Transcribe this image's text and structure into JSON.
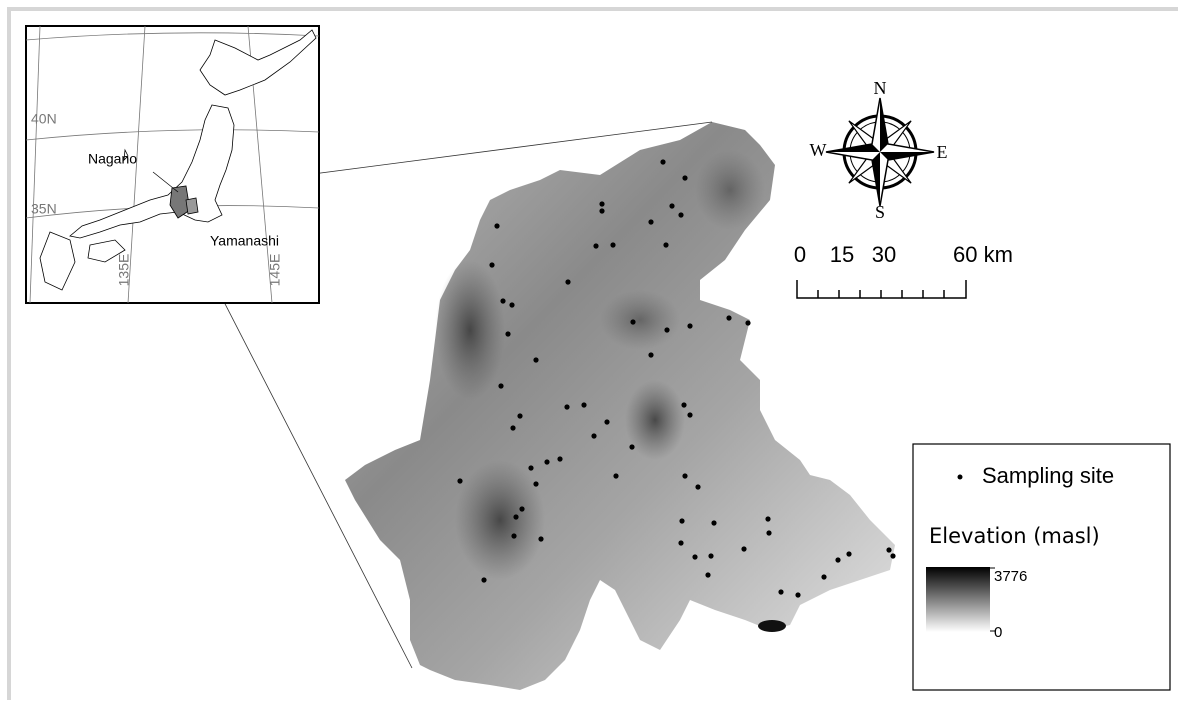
{
  "inset": {
    "latitudes": [
      "40N",
      "35N"
    ],
    "longitudes": [
      "135E",
      "145E"
    ],
    "prefectures": [
      "Nagano",
      "Yamanashi"
    ]
  },
  "compass": {
    "north": "N",
    "south": "S",
    "east": "E",
    "west": "W"
  },
  "scale_bar": {
    "labels": [
      "0",
      "15",
      "30",
      "60 km"
    ]
  },
  "legend": {
    "marker_label": "Sampling site",
    "elevation_title": "Elevation (masl)",
    "elevation_max": "3776",
    "elevation_min": "0"
  }
}
